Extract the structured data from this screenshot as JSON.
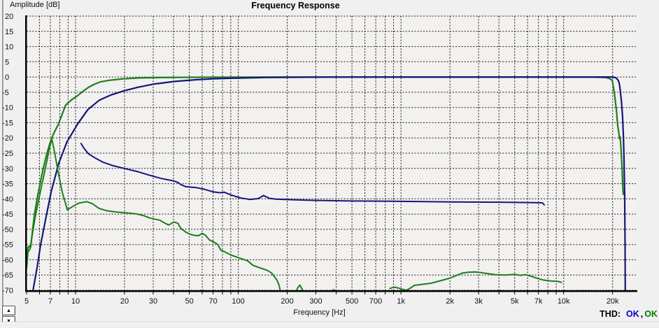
{
  "ui": {
    "colors": {
      "window_bg": "#f0f0f0",
      "axis_color": "#000000"
    },
    "icons": {
      "up_arrow": "▲",
      "down_arrow": "▼"
    }
  },
  "thd": {
    "label": "THD:",
    "ok_left": "OK",
    "separator": ",",
    "ok_right": "OK",
    "ok_left_color": "#0000cc",
    "ok_right_color": "#008000"
  },
  "chart_data": {
    "type": "line",
    "title": "Frequency Response",
    "xlabel": "Frequency [Hz]",
    "ylabel": "Amplitude [dB]",
    "x_scale": "log",
    "xlim": [
      5,
      27800
    ],
    "ylim": [
      -70,
      20
    ],
    "grid": true,
    "legend_position": "none",
    "plot_bg": "#f2f1ef",
    "grid_color": "#1a1a1a",
    "y_ticks": [
      20,
      15,
      10,
      5,
      0,
      -5,
      -10,
      -15,
      -20,
      -25,
      -30,
      -35,
      -40,
      -45,
      -50,
      -55,
      -60,
      -65,
      -70
    ],
    "grid_freqs": [
      6,
      7,
      8,
      9,
      10,
      20,
      30,
      40,
      50,
      60,
      70,
      80,
      90,
      100,
      200,
      300,
      400,
      500,
      600,
      700,
      800,
      900,
      1000,
      2000,
      3000,
      4000,
      5000,
      6000,
      7000,
      8000,
      9000,
      10000,
      20000
    ],
    "x_ticks": [
      {
        "f": 5,
        "label": "5"
      },
      {
        "f": 7,
        "label": "7"
      },
      {
        "f": 10,
        "label": "10"
      },
      {
        "f": 20,
        "label": "20"
      },
      {
        "f": 30,
        "label": "30"
      },
      {
        "f": 50,
        "label": "50"
      },
      {
        "f": 70,
        "label": "70"
      },
      {
        "f": 100,
        "label": "100"
      },
      {
        "f": 200,
        "label": "200"
      },
      {
        "f": 300,
        "label": "300"
      },
      {
        "f": 500,
        "label": "500"
      },
      {
        "f": 700,
        "label": "700"
      },
      {
        "f": 1000,
        "label": "1k"
      },
      {
        "f": 2000,
        "label": "2k"
      },
      {
        "f": 3000,
        "label": "3k"
      },
      {
        "f": 5000,
        "label": "5k"
      },
      {
        "f": 7000,
        "label": "7k"
      },
      {
        "f": 10000,
        "label": "10k"
      },
      {
        "f": 20000,
        "label": "20k"
      }
    ],
    "series": [
      {
        "name": "green-frequency-response",
        "color": "#1e7d1e",
        "width": 2.2,
        "segments": [
          [
            [
              5,
              -62
            ],
            [
              5.1,
              -56
            ],
            [
              5.2,
              -55.5
            ],
            [
              5.3,
              -55.8
            ],
            [
              5.45,
              -50
            ],
            [
              5.6,
              -45
            ],
            [
              5.8,
              -40
            ],
            [
              6.05,
              -35
            ],
            [
              6.3,
              -30.5
            ],
            [
              6.6,
              -26
            ],
            [
              6.95,
              -21.8
            ],
            [
              7.3,
              -18.8
            ],
            [
              7.85,
              -15.4
            ],
            [
              8.3,
              -12
            ],
            [
              8.7,
              -9.2
            ],
            [
              9.5,
              -7.4
            ],
            [
              10.3,
              -6.1
            ],
            [
              11.1,
              -4.7
            ],
            [
              12,
              -3.4
            ],
            [
              13,
              -2.4
            ],
            [
              14.2,
              -1.6
            ],
            [
              16,
              -1.1
            ],
            [
              18,
              -0.8
            ],
            [
              19.7,
              -0.6
            ],
            [
              25,
              -0.3
            ],
            [
              30.5,
              -0.2
            ],
            [
              50,
              -0.1
            ],
            [
              90,
              -0.05
            ],
            [
              200,
              0
            ],
            [
              1000,
              0
            ],
            [
              5000,
              0
            ],
            [
              10000,
              0
            ],
            [
              15000,
              0
            ],
            [
              18000,
              -0.15
            ],
            [
              19000,
              -0.4
            ],
            [
              19900,
              -1.1
            ],
            [
              20500,
              -5.3
            ],
            [
              21100,
              -10.8
            ],
            [
              21500,
              -16
            ],
            [
              21900,
              -18.8
            ],
            [
              22050,
              -20.3
            ],
            [
              22200,
              -19.6
            ],
            [
              22350,
              -21
            ],
            [
              22600,
              -25.2
            ],
            [
              22850,
              -29.8
            ],
            [
              23050,
              -35.6
            ],
            [
              23250,
              -38.5
            ]
          ]
        ]
      },
      {
        "name": "blue-frequency-response",
        "color": "#15157c",
        "width": 2.2,
        "segments": [
          [
            [
              5.35,
              -76
            ],
            [
              5.5,
              -69.5
            ],
            [
              5.8,
              -62.6
            ],
            [
              6.1,
              -55
            ],
            [
              6.55,
              -46.6
            ],
            [
              7.1,
              -37.4
            ],
            [
              7.9,
              -28.2
            ],
            [
              8.85,
              -21.3
            ],
            [
              10.3,
              -15.4
            ],
            [
              11.9,
              -10.7
            ],
            [
              14,
              -7.6
            ],
            [
              16.5,
              -5.9
            ],
            [
              19.7,
              -4.6
            ],
            [
              24,
              -3.4
            ],
            [
              30.5,
              -2.3
            ],
            [
              40,
              -1.5
            ],
            [
              55,
              -0.9
            ],
            [
              70,
              -0.6
            ],
            [
              90,
              -0.4
            ],
            [
              150,
              -0.15
            ],
            [
              300,
              -0.05
            ],
            [
              1000,
              0
            ],
            [
              10000,
              0
            ],
            [
              20000,
              0
            ],
            [
              21000,
              -0.3
            ],
            [
              21700,
              -1.2
            ],
            [
              22000,
              -2.3
            ],
            [
              22300,
              -4.6
            ],
            [
              22700,
              -8.5
            ],
            [
              23000,
              -13
            ],
            [
              23300,
              -20
            ],
            [
              23500,
              -27
            ],
            [
              23700,
              -38
            ],
            [
              23850,
              -55
            ],
            [
              23950,
              -76
            ]
          ]
        ]
      },
      {
        "name": "blue-thd-noise",
        "color": "#15157c",
        "width": 2,
        "segments": [
          [
            [
              10.8,
              -21.8
            ],
            [
              11.3,
              -23.5
            ],
            [
              12,
              -25.2
            ],
            [
              13.4,
              -26.8
            ],
            [
              14.8,
              -28
            ],
            [
              17,
              -29.1
            ],
            [
              19.5,
              -29.9
            ],
            [
              23.8,
              -31
            ],
            [
              27.9,
              -32.1
            ],
            [
              33.6,
              -33.3
            ],
            [
              40,
              -34.1
            ],
            [
              42.5,
              -34.6
            ],
            [
              44.4,
              -35.3
            ],
            [
              47.5,
              -36
            ],
            [
              55,
              -36.3
            ],
            [
              61.5,
              -36.8
            ],
            [
              70,
              -37.7
            ],
            [
              77,
              -38
            ],
            [
              82,
              -37.8
            ],
            [
              90,
              -38.7
            ],
            [
              103,
              -39.7
            ],
            [
              118,
              -40.2
            ],
            [
              133,
              -39.9
            ],
            [
              143,
              -38.9
            ],
            [
              155,
              -39.8
            ],
            [
              170,
              -40.1
            ],
            [
              216,
              -40.3
            ],
            [
              290,
              -40.5
            ],
            [
              500,
              -40.7
            ],
            [
              900,
              -40.8
            ],
            [
              2000,
              -41
            ],
            [
              4000,
              -41.1
            ],
            [
              6000,
              -41.2
            ],
            [
              7400,
              -41.3
            ],
            [
              7600,
              -42
            ]
          ]
        ]
      },
      {
        "name": "green-thd-noise",
        "color": "#1e7d1e",
        "width": 2,
        "segments": [
          [
            [
              5,
              -63
            ],
            [
              5.1,
              -57.5
            ],
            [
              5.25,
              -56.5
            ],
            [
              5.45,
              -51
            ],
            [
              5.65,
              -46
            ],
            [
              5.9,
              -41
            ],
            [
              6.2,
              -35.5
            ],
            [
              6.55,
              -29.5
            ],
            [
              6.9,
              -23.5
            ],
            [
              7.15,
              -20.3
            ],
            [
              7.45,
              -25
            ],
            [
              7.8,
              -31
            ],
            [
              8.3,
              -38
            ],
            [
              8.9,
              -43.6
            ],
            [
              9.6,
              -42.5
            ],
            [
              10.5,
              -41.4
            ],
            [
              11.7,
              -40.9
            ],
            [
              12.7,
              -41.6
            ],
            [
              13.9,
              -43.1
            ],
            [
              15.5,
              -43.9
            ],
            [
              17.7,
              -44.3
            ],
            [
              21.5,
              -44.7
            ],
            [
              24,
              -45
            ],
            [
              26.2,
              -45.5
            ],
            [
              28.7,
              -46.3
            ],
            [
              32.9,
              -47
            ],
            [
              35.5,
              -48
            ],
            [
              37.4,
              -48.6
            ],
            [
              40.2,
              -47.6
            ],
            [
              42.5,
              -48
            ],
            [
              44.4,
              -49.7
            ],
            [
              47.5,
              -50.9
            ],
            [
              50.5,
              -51.6
            ],
            [
              54,
              -52
            ],
            [
              57,
              -52.1
            ],
            [
              60,
              -51.3
            ],
            [
              63,
              -52
            ],
            [
              66.5,
              -53.5
            ],
            [
              71,
              -54.2
            ],
            [
              75,
              -55
            ],
            [
              78,
              -56.8
            ],
            [
              84,
              -57.6
            ],
            [
              90,
              -58.4
            ],
            [
              100,
              -59.3
            ],
            [
              114,
              -60.3
            ],
            [
              123,
              -61.8
            ],
            [
              135,
              -62.6
            ],
            [
              150,
              -63.4
            ],
            [
              160,
              -64.3
            ],
            [
              165,
              -65.2
            ],
            [
              172,
              -66.5
            ],
            [
              177,
              -67.9
            ],
            [
              183,
              -71
            ]
          ],
          [
            [
              224,
              -71
            ],
            [
              232,
              -69.2
            ],
            [
              239,
              -68.3
            ],
            [
              246,
              -69.5
            ],
            [
              253,
              -71
            ]
          ],
          [
            [
              368,
              -70.6
            ],
            [
              385,
              -69.8
            ],
            [
              402,
              -70.6
            ]
          ],
          [
            [
              855,
              -69.4
            ],
            [
              905,
              -69
            ],
            [
              950,
              -69.2
            ],
            [
              1010,
              -69.6
            ],
            [
              1080,
              -70
            ],
            [
              1150,
              -69.2
            ],
            [
              1210,
              -68.4
            ],
            [
              1530,
              -67.7
            ],
            [
              1980,
              -66.1
            ],
            [
              2400,
              -64.3
            ],
            [
              2600,
              -64.1
            ],
            [
              2870,
              -64
            ],
            [
              3100,
              -64.2
            ],
            [
              3480,
              -64.6
            ],
            [
              3800,
              -64.9
            ],
            [
              4370,
              -65
            ],
            [
              4700,
              -64.9
            ],
            [
              5010,
              -64.8
            ],
            [
              5400,
              -65.1
            ],
            [
              5870,
              -64.9
            ],
            [
              6470,
              -65.6
            ],
            [
              7000,
              -66.2
            ],
            [
              7430,
              -66.6
            ],
            [
              8400,
              -67
            ],
            [
              9200,
              -67.1
            ],
            [
              9700,
              -67.4
            ]
          ]
        ]
      }
    ]
  }
}
